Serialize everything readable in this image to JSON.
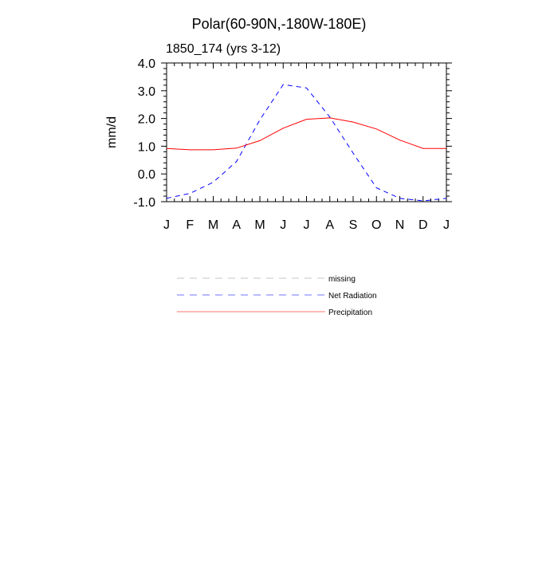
{
  "chart_data": {
    "type": "line",
    "title": "Polar(60-90N,-180W-180E)",
    "subtitle": "1850_174 (yrs 3-12)",
    "ylabel": "mm/d",
    "xlabel": "",
    "x_tick_labels": [
      "J",
      "F",
      "M",
      "A",
      "M",
      "J",
      "J",
      "A",
      "S",
      "O",
      "N",
      "D",
      "J"
    ],
    "y_ticks": [
      4.0,
      3.0,
      2.0,
      1.0,
      0.0,
      -1.0
    ],
    "y_tick_labels": [
      "4.0",
      "3.0",
      "2.0",
      "1.0",
      "0.0",
      "-1.0"
    ],
    "ylim": [
      -1.0,
      4.0
    ],
    "xlim": [
      0,
      12
    ],
    "grid": false,
    "legend_position": "bottom-center",
    "series": [
      {
        "name": "missing",
        "color": "#999999",
        "dash": "dashed",
        "values": []
      },
      {
        "name": "Net Radiation",
        "color": "#0000ff",
        "dash": "dashed",
        "values": [
          -0.88,
          -0.7,
          -0.3,
          0.45,
          1.95,
          3.22,
          3.1,
          2.05,
          0.75,
          -0.5,
          -0.88,
          -0.97,
          -0.88
        ]
      },
      {
        "name": "Precipitation",
        "color": "#ff0000",
        "dash": "solid",
        "values": [
          0.92,
          0.87,
          0.87,
          0.93,
          1.2,
          1.65,
          1.97,
          2.02,
          1.87,
          1.62,
          1.22,
          0.92,
          0.92
        ]
      }
    ]
  }
}
